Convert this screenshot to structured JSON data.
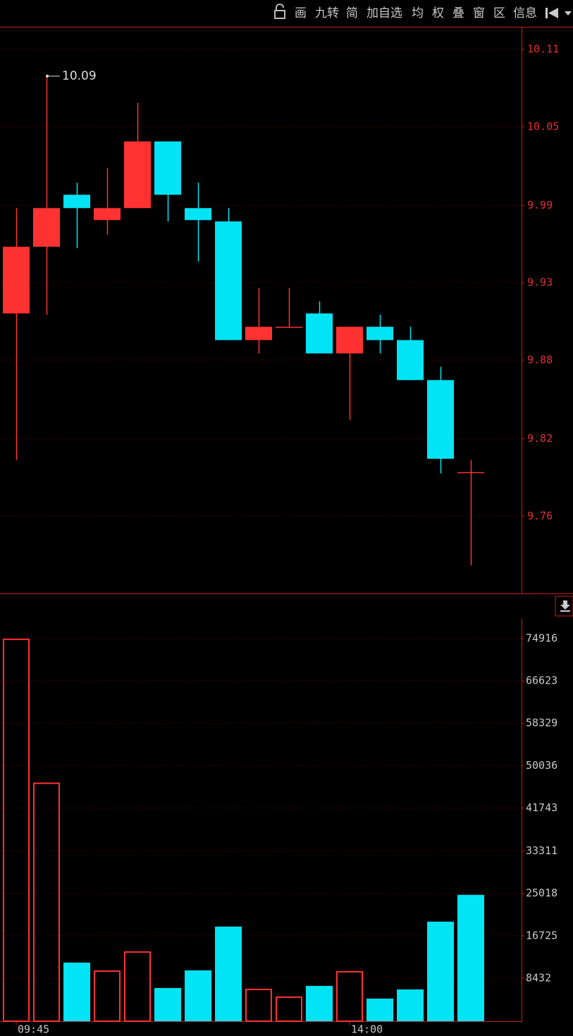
{
  "toolbar": {
    "items": [
      "画",
      "九转",
      "简",
      "加自选",
      "均",
      "权",
      "叠",
      "窗",
      "区",
      "信息"
    ]
  },
  "chart_data": [
    {
      "type": "candlestick",
      "open": [
        9.912,
        9.962,
        10.001,
        9.982,
        9.991,
        10.041,
        9.991,
        9.981,
        9.892,
        9.902,
        9.912,
        9.882,
        9.902,
        9.892,
        9.862,
        9.793
      ],
      "high": [
        9.991,
        10.09,
        10.01,
        10.021,
        10.07,
        10.041,
        10.01,
        9.991,
        9.931,
        9.931,
        9.921,
        9.902,
        9.911,
        9.902,
        9.872,
        9.802
      ],
      "low": [
        9.802,
        9.911,
        9.961,
        9.971,
        9.991,
        9.981,
        9.951,
        9.892,
        9.882,
        9.902,
        9.882,
        9.832,
        9.882,
        9.862,
        9.792,
        9.723
      ],
      "close": [
        9.962,
        9.991,
        9.991,
        9.991,
        10.041,
        10.001,
        9.982,
        9.892,
        9.902,
        9.902,
        9.882,
        9.902,
        9.892,
        9.862,
        9.803,
        9.793
      ],
      "up_color": "#ff3232",
      "down_color": "#00e4f5",
      "ylim": [
        9.702,
        10.127
      ],
      "yticks": [
        {
          "value": 10.11,
          "label": "10.11"
        },
        {
          "value": 10.052,
          "label": "10.05"
        },
        {
          "value": 9.993,
          "label": "9.99"
        },
        {
          "value": 9.935,
          "label": "9.93"
        },
        {
          "value": 9.877,
          "label": "9.88"
        },
        {
          "value": 9.818,
          "label": "9.82"
        },
        {
          "value": 9.76,
          "label": "9.76"
        }
      ],
      "grid": true
    },
    {
      "type": "bar",
      "categories": [
        "09:45",
        null,
        null,
        null,
        null,
        null,
        null,
        null,
        null,
        null,
        null,
        "14:00",
        null,
        null,
        null,
        null
      ],
      "values": [
        74900,
        46716,
        11472,
        9952,
        13684,
        6496,
        9952,
        18521,
        6358,
        4838,
        6911,
        9813,
        4423,
        6220,
        19489,
        24741
      ],
      "colors": [
        "#ff3232",
        "#ff3232",
        "#00e4f5",
        "#ff3232",
        "#ff3232",
        "#00e4f5",
        "#00e4f5",
        "#00e4f5",
        "#ff3232",
        "#ff3232",
        "#00e4f5",
        "#ff3232",
        "#00e4f5",
        "#00e4f5",
        "#00e4f5",
        "#00e4f5"
      ],
      "hollow_colors": [
        "#ff3232"
      ],
      "ylim": [
        0,
        78783
      ],
      "yticks": [
        8432,
        16725,
        25018,
        33311,
        41743,
        50036,
        58329,
        66623,
        74916
      ],
      "grid": true
    }
  ]
}
